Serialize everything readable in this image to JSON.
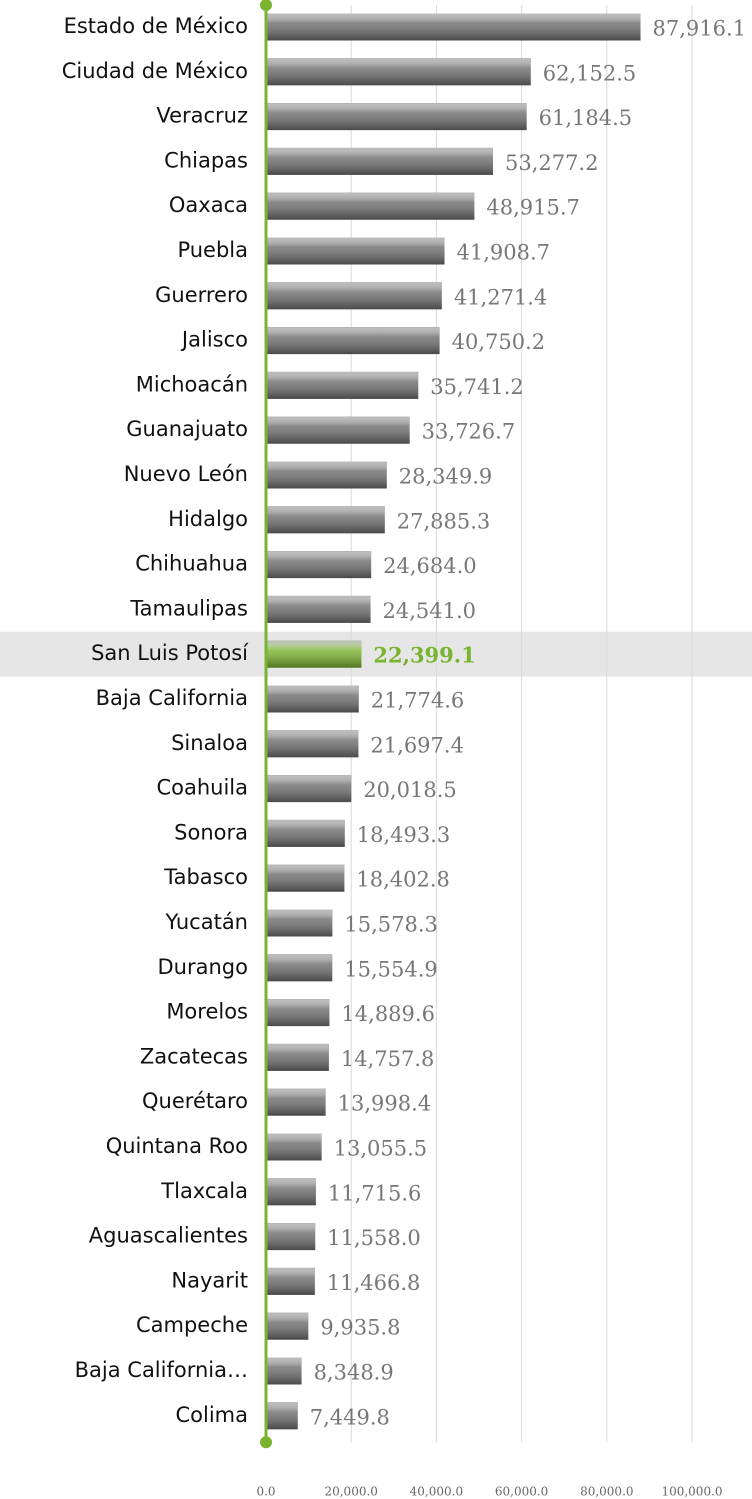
{
  "chart_data": {
    "type": "barh",
    "categories": [
      "Estado de México",
      "Ciudad de México",
      "Veracruz",
      "Chiapas",
      "Oaxaca",
      "Puebla",
      "Guerrero",
      "Jalisco",
      "Michoacán",
      "Guanajuato",
      "Nuevo León",
      "Hidalgo",
      "Chihuahua",
      "Tamaulipas",
      "San Luis Potosí",
      "Baja California",
      "Sinaloa",
      "Coahuila",
      "Sonora",
      "Tabasco",
      "Yucatán",
      "Durango",
      "Morelos",
      "Zacatecas",
      "Querétaro",
      "Quintana Roo",
      "Tlaxcala",
      "Aguascalientes",
      "Nayarit",
      "Campeche",
      "Baja California…",
      "Colima"
    ],
    "values": [
      87916.1,
      62152.5,
      61184.5,
      53277.2,
      48915.7,
      41908.7,
      41271.4,
      40750.2,
      35741.2,
      33726.7,
      28349.9,
      27885.3,
      24684.0,
      24541.0,
      22399.1,
      21774.6,
      21697.4,
      20018.5,
      18493.3,
      18402.8,
      15578.3,
      15554.9,
      14889.6,
      14757.8,
      13998.4,
      13055.5,
      11715.6,
      11558.0,
      11466.8,
      9935.8,
      8348.9,
      7449.8
    ],
    "value_labels": [
      "87,916.1",
      "62,152.5",
      "61,184.5",
      "53,277.2",
      "48,915.7",
      "41,908.7",
      "41,271.4",
      "40,750.2",
      "35,741.2",
      "33,726.7",
      "28,349.9",
      "27,885.3",
      "24,684.0",
      "24,541.0",
      "22,399.1",
      "21,774.6",
      "21,697.4",
      "20,018.5",
      "18,493.3",
      "18,402.8",
      "15,578.3",
      "15,554.9",
      "14,889.6",
      "14,757.8",
      "13,998.4",
      "13,055.5",
      "11,715.6",
      "11,558.0",
      "11,466.8",
      "9,935.8",
      "8,348.9",
      "7,449.8"
    ],
    "colors": [
      "#6e6e6e",
      "#6e6e6e",
      "#6e6e6e",
      "#6e6e6e",
      "#6e6e6e",
      "#6e6e6e",
      "#6e6e6e",
      "#6e6e6e",
      "#6e6e6e",
      "#6e6e6e",
      "#6e6e6e",
      "#6e6e6e",
      "#6e6e6e",
      "#6e6e6e",
      "#7ab32e",
      "#6e6e6e",
      "#6e6e6e",
      "#6e6e6e",
      "#6e6e6e",
      "#6e6e6e",
      "#6e6e6e",
      "#6e6e6e",
      "#6e6e6e",
      "#6e6e6e",
      "#6e6e6e",
      "#6e6e6e",
      "#6e6e6e",
      "#6e6e6e",
      "#6e6e6e",
      "#6e6e6e",
      "#6e6e6e",
      "#6e6e6e"
    ],
    "xlim": [
      0,
      100000
    ],
    "xticks": [
      {
        "value": 0,
        "label": "0.0"
      },
      {
        "value": 20000,
        "label": "20,000.0"
      },
      {
        "value": 40000,
        "label": "40,000.0"
      },
      {
        "value": 60000,
        "label": "60,000.0"
      },
      {
        "value": 80000,
        "label": "80,000.0"
      },
      {
        "value": 100000,
        "label": "100,000.0"
      }
    ],
    "grid": true
  }
}
